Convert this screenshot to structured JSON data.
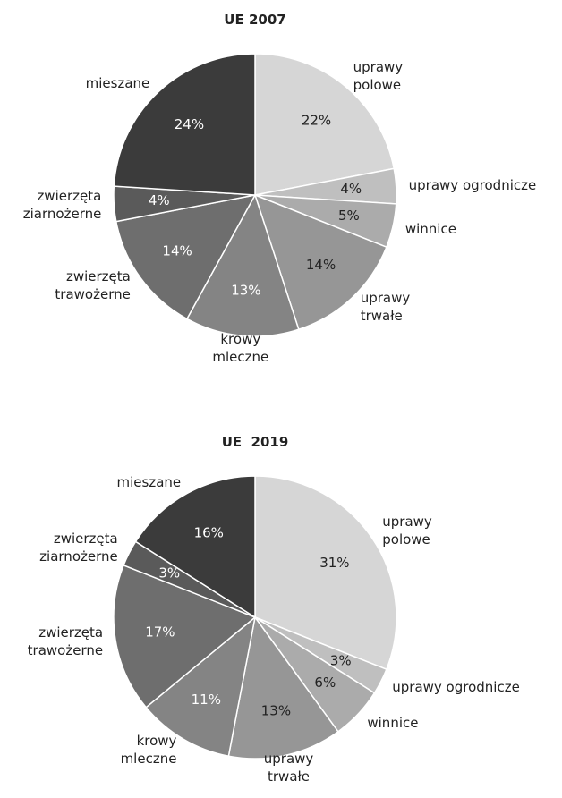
{
  "chart_data": [
    {
      "type": "pie",
      "title": "UE 2007",
      "categories": [
        "uprawy\npolowe",
        "uprawy ogrodnicze",
        "winnice",
        "uprawy\ntrwałe",
        "krowy\nmleczne",
        "zwierzęta\ntrawożerne",
        "zwierzęta\nziarnożerne",
        "mieszane"
      ],
      "values": [
        22,
        4,
        5,
        14,
        13,
        14,
        4,
        24
      ],
      "value_labels": [
        "22%",
        "4%",
        "5%",
        "14%",
        "13%",
        "14%",
        "4%",
        "24%"
      ],
      "colors": [
        "#d6d6d6",
        "#bfbfbf",
        "#ababab",
        "#969696",
        "#848484",
        "#6e6e6e",
        "#5a5a5a",
        "#3b3b3b"
      ]
    },
    {
      "type": "pie",
      "title": "UE  2019",
      "categories": [
        "uprawy\npolowe",
        "uprawy ogrodnicze",
        "winnice",
        "uprawy\ntrwałe",
        "krowy\nmleczne",
        "zwierzęta\ntrawożerne",
        "zwierzęta\nziarnożerne",
        "mieszane"
      ],
      "values": [
        31,
        3,
        6,
        13,
        11,
        17,
        3,
        16
      ],
      "value_labels": [
        "31%",
        "3%",
        "6%",
        "13%",
        "11%",
        "17%",
        "3%",
        "16%"
      ],
      "colors": [
        "#d6d6d6",
        "#bfbfbf",
        "#ababab",
        "#969696",
        "#848484",
        "#6e6e6e",
        "#5a5a5a",
        "#3b3b3b"
      ]
    }
  ]
}
